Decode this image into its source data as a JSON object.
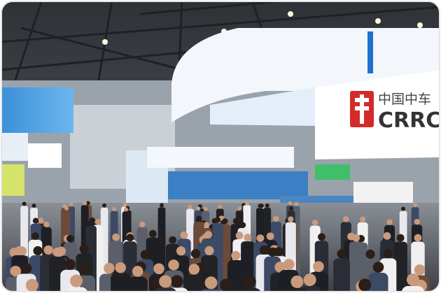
{
  "signs": {
    "crrc_cn": "中国中车",
    "crrc_en": "CRRC"
  }
}
